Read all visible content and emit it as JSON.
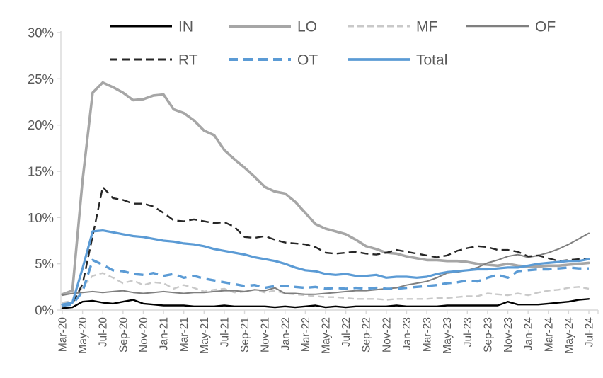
{
  "chart_data": {
    "type": "line",
    "title": "",
    "xlabel": "",
    "ylabel": "",
    "ylim": [
      0,
      30
    ],
    "grid": false,
    "legend_position": "top",
    "axis_color": "#D9D9D9",
    "text_color": "#595959",
    "accent_blue": "#5B9BD5",
    "y_tick_labels": [
      "0%",
      "5%",
      "10%",
      "15%",
      "20%",
      "25%",
      "30%"
    ],
    "x_tick_labels": [
      "Mar-20",
      "May-20",
      "Jul-20",
      "Sep-20",
      "Nov-20",
      "Jan-21",
      "Mar-21",
      "May-21",
      "Jul-21",
      "Sep-21",
      "Nov-21",
      "Jan-22",
      "Mar-22",
      "May-22",
      "Jul-22",
      "Sep-22",
      "Nov-22",
      "Jan-23",
      "Mar-23",
      "May-23",
      "Jul-23",
      "Sep-23",
      "Nov-23",
      "Jan-24",
      "Mar-24",
      "May-24",
      "Jul-24"
    ],
    "x_frequency": "monthly (ticks every 2 months, Mar-20 through Jul-24, 53 points)",
    "legend": {
      "rows": [
        [
          "IN",
          "LO",
          "MF",
          "OF"
        ],
        [
          "RT",
          "OT",
          "Total"
        ]
      ]
    },
    "series": [
      {
        "name": "IN",
        "color": "#000000",
        "dash": null,
        "width": 2.4,
        "values": [
          0.2,
          0.3,
          0.9,
          1.0,
          0.8,
          0.7,
          0.9,
          1.1,
          0.7,
          0.6,
          0.5,
          0.5,
          0.5,
          0.4,
          0.4,
          0.4,
          0.5,
          0.4,
          0.4,
          0.4,
          0.4,
          0.3,
          0.4,
          0.3,
          0.4,
          0.5,
          0.3,
          0.4,
          0.3,
          0.4,
          0.4,
          0.4,
          0.4,
          0.5,
          0.4,
          0.4,
          0.4,
          0.4,
          0.5,
          0.5,
          0.5,
          0.5,
          0.5,
          0.5,
          0.9,
          0.6,
          0.6,
          0.6,
          0.7,
          0.8,
          0.9,
          1.1,
          1.2
        ]
      },
      {
        "name": "LO",
        "color": "#A6A6A6",
        "dash": null,
        "width": 3.6,
        "values": [
          1.7,
          2.1,
          14.0,
          23.5,
          24.6,
          24.1,
          23.5,
          22.7,
          22.8,
          23.2,
          23.3,
          21.7,
          21.3,
          20.5,
          19.4,
          18.9,
          17.3,
          16.3,
          15.4,
          14.4,
          13.3,
          12.8,
          12.6,
          11.7,
          10.5,
          9.3,
          8.8,
          8.5,
          8.2,
          7.6,
          6.9,
          6.6,
          6.2,
          6.1,
          5.8,
          5.6,
          5.4,
          5.4,
          5.3,
          5.3,
          5.2,
          5.0,
          4.9,
          4.8,
          5.0,
          4.8,
          4.7,
          4.7,
          4.8,
          4.8,
          4.9,
          5.0,
          5.1
        ]
      },
      {
        "name": "MF",
        "color": "#C9C9C9",
        "dash": [
          9,
          5
        ],
        "width": 2.4,
        "values": [
          0.8,
          1.0,
          2.5,
          3.7,
          4.0,
          3.5,
          2.9,
          3.2,
          2.7,
          3.0,
          2.9,
          2.3,
          2.7,
          2.4,
          2.0,
          2.2,
          2.3,
          1.9,
          2.0,
          2.2,
          1.9,
          2.1,
          1.8,
          1.7,
          1.6,
          1.5,
          1.4,
          1.4,
          1.3,
          1.2,
          1.2,
          1.2,
          1.1,
          1.2,
          1.2,
          1.2,
          1.2,
          1.3,
          1.3,
          1.4,
          1.5,
          1.5,
          1.8,
          1.7,
          1.6,
          1.8,
          1.6,
          1.9,
          2.1,
          2.2,
          2.4,
          2.5,
          2.3
        ]
      },
      {
        "name": "OF",
        "color": "#7F7F7F",
        "dash": null,
        "width": 2.0,
        "values": [
          1.6,
          1.8,
          1.9,
          2.0,
          1.9,
          2.0,
          2.1,
          1.9,
          1.8,
          1.9,
          2.0,
          1.9,
          1.8,
          1.9,
          1.9,
          2.0,
          2.1,
          2.1,
          2.0,
          2.2,
          2.1,
          2.4,
          1.8,
          1.8,
          1.7,
          1.7,
          1.8,
          1.9,
          2.0,
          2.1,
          2.1,
          2.2,
          2.3,
          2.4,
          2.7,
          2.9,
          3.1,
          3.5,
          4.0,
          4.1,
          4.3,
          4.6,
          5.1,
          5.4,
          5.8,
          6.0,
          5.7,
          5.9,
          6.2,
          6.6,
          7.1,
          7.7,
          8.3
        ]
      },
      {
        "name": "RT",
        "color": "#262626",
        "dash": [
          11,
          6
        ],
        "width": 2.4,
        "values": [
          0.4,
          0.7,
          2.8,
          8.0,
          13.3,
          12.1,
          11.9,
          11.5,
          11.5,
          11.2,
          10.5,
          9.7,
          9.6,
          9.8,
          9.6,
          9.4,
          9.5,
          9.0,
          7.9,
          7.8,
          8.0,
          7.6,
          7.3,
          7.2,
          7.1,
          6.8,
          6.2,
          6.1,
          6.2,
          6.3,
          6.1,
          6.0,
          6.2,
          6.5,
          6.3,
          6.1,
          5.9,
          5.7,
          5.9,
          6.4,
          6.7,
          6.9,
          6.8,
          6.5,
          6.5,
          6.3,
          5.8,
          5.9,
          5.6,
          5.3,
          5.4,
          5.5,
          5.5
        ]
      },
      {
        "name": "OT",
        "color": "#5B9BD5",
        "dash": [
          13,
          8
        ],
        "width": 3.4,
        "values": [
          0.5,
          0.6,
          2.0,
          5.4,
          4.9,
          4.3,
          4.2,
          3.9,
          3.8,
          4.0,
          3.7,
          3.9,
          3.5,
          3.7,
          3.4,
          3.2,
          3.0,
          2.8,
          2.6,
          2.7,
          2.4,
          2.6,
          2.6,
          2.5,
          2.4,
          2.5,
          2.3,
          2.4,
          2.3,
          2.4,
          2.3,
          2.4,
          2.3,
          2.3,
          2.4,
          2.5,
          2.6,
          2.7,
          2.9,
          3.0,
          3.2,
          3.1,
          3.5,
          3.8,
          3.5,
          4.2,
          4.3,
          4.4,
          4.4,
          4.5,
          4.6,
          4.5,
          4.5
        ]
      },
      {
        "name": "Total",
        "color": "#5B9BD5",
        "dash": null,
        "width": 3.2,
        "values": [
          0.6,
          0.8,
          4.5,
          8.5,
          8.6,
          8.4,
          8.2,
          8.0,
          7.9,
          7.7,
          7.5,
          7.4,
          7.2,
          7.1,
          6.9,
          6.6,
          6.4,
          6.2,
          6.0,
          5.7,
          5.5,
          5.3,
          5.0,
          4.6,
          4.3,
          4.2,
          3.9,
          3.8,
          3.9,
          3.7,
          3.7,
          3.8,
          3.5,
          3.6,
          3.6,
          3.5,
          3.6,
          3.9,
          4.1,
          4.2,
          4.3,
          4.4,
          4.4,
          4.5,
          4.6,
          4.6,
          4.8,
          5.0,
          5.1,
          5.2,
          5.3,
          5.3,
          5.5
        ]
      }
    ]
  }
}
